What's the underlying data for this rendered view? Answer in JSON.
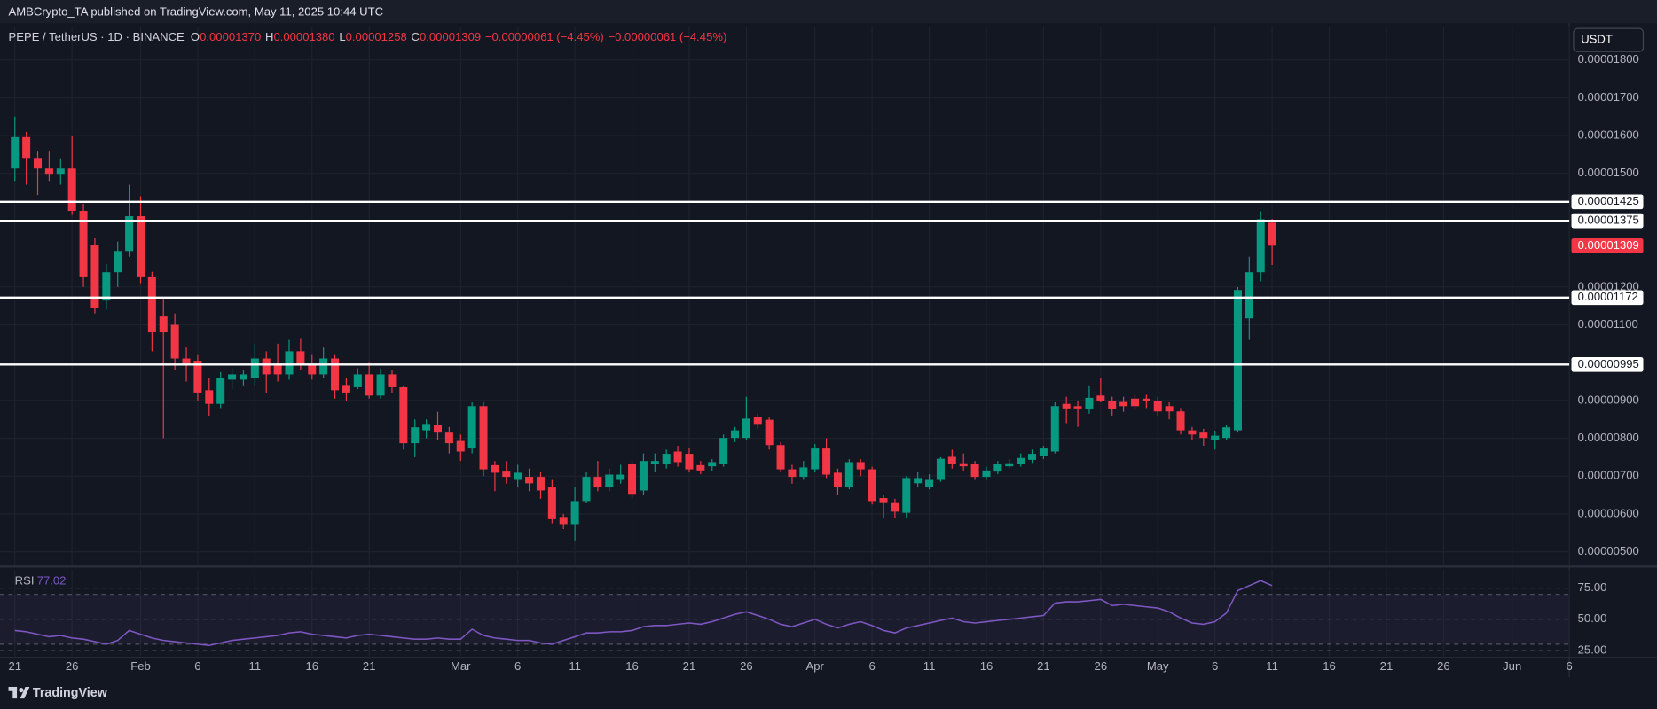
{
  "header": {
    "publisher": "AMBCrypto_TA published on TradingView.com, May 11, 2025 10:44 UTC"
  },
  "footer": {
    "brand": "TradingView"
  },
  "chart_data": {
    "type": "candlestick",
    "currency": "USDT",
    "legend": {
      "symbol": "PEPE / TetherUS · 1D · BINANCE",
      "items": [
        {
          "key": "O",
          "value": "0.00001370"
        },
        {
          "key": "H",
          "value": "0.00001380"
        },
        {
          "key": "L",
          "value": "0.00001258"
        },
        {
          "key": "C",
          "value": "0.00001309"
        }
      ],
      "changes": [
        "−0.00000061 (−4.45%)",
        "−0.00000061 (−4.45%)"
      ]
    },
    "up_color": "#089981",
    "down_color": "#f23645",
    "grid": true,
    "candles": {
      "open": [
        1.513e-05,
        1.596e-05,
        1.541e-05,
        1.513e-05,
        1.499e-05,
        1.513e-05,
        1.401e-05,
        1.312e-05,
        1.164e-05,
        1.239e-05,
        1.295e-05,
        1.387e-05,
        1.228e-05,
        1.122e-05,
        1.1e-05,
        1.011e-05,
        1.005e-05,
        9.27e-06,
        8.91e-06,
        9.55e-06,
        9.55e-06,
        9.6e-06,
        1.011e-05,
        9.97e-06,
        9.69e-06,
        1.03e-05,
        9.97e-06,
        9.69e-06,
        1.011e-05,
        9.41e-06,
        9.35e-06,
        9.69e-06,
        9.13e-06,
        9.69e-06,
        9.35e-06,
        7.87e-06,
        8.21e-06,
        8.35e-06,
        8.15e-06,
        7.93e-06,
        7.73e-06,
        8.85e-06,
        7.29e-06,
        7.12e-06,
        6.9e-06,
        6.98e-06,
        6.98e-06,
        6.7e-06,
        5.92e-06,
        5.73e-06,
        6.34e-06,
        6.98e-06,
        6.7e-06,
        6.9e-06,
        7.32e-06,
        6.62e-06,
        7.32e-06,
        7.32e-06,
        7.65e-06,
        7.59e-06,
        7.29e-06,
        7.26e-06,
        7.32e-06,
        8.01e-06,
        8.01e-06,
        8.57e-06,
        8.49e-06,
        7.82e-06,
        7.18e-06,
        6.98e-06,
        7.18e-06,
        7.73e-06,
        7.09e-06,
        6.7e-06,
        7.37e-06,
        7.18e-06,
        6.42e-06,
        6.31e-06,
        6.03e-06,
        6.81e-06,
        6.7e-06,
        6.9e-06,
        7.51e-06,
        7.34e-06,
        7.32e-06,
        6.98e-06,
        7.12e-06,
        7.26e-06,
        7.32e-06,
        7.43e-06,
        7.54e-06,
        7.65e-06,
        8.91e-06,
        8.85e-06,
        8.77e-06,
        9.13e-06,
        8.99e-06,
        8.96e-06,
        9.05e-06,
        9.05e-06,
        8.99e-06,
        8.85e-06,
        8.71e-06,
        8.21e-06,
        8.15e-06,
        7.96e-06,
        8.01e-06,
        8.21e-06,
        1.117e-05,
        1.239e-05,
        1.37e-05
      ],
      "high": [
        1.65e-05,
        1.61e-05,
        1.56e-05,
        1.56e-05,
        1.54e-05,
        1.6e-05,
        1.42e-05,
        1.33e-05,
        1.26e-05,
        1.32e-05,
        1.47e-05,
        1.44e-05,
        1.24e-05,
        1.17e-05,
        1.13e-05,
        1.04e-05,
        1.02e-05,
        9.6e-06,
        9.75e-06,
        9.85e-06,
        9.8e-06,
        1.05e-05,
        1.03e-05,
        1.05e-05,
        1.06e-05,
        1.065e-05,
        1.02e-05,
        1.04e-05,
        1.02e-05,
        9.6e-06,
        9.85e-06,
        1e-05,
        9.85e-06,
        9.8e-06,
        9.4e-06,
        8.5e-06,
        8.5e-06,
        8.7e-06,
        8.3e-06,
        8.1e-06,
        8.95e-06,
        8.95e-06,
        7.4e-06,
        7.4e-06,
        7.3e-06,
        7.2e-06,
        7.1e-06,
        6.9e-06,
        6e-06,
        6.7e-06,
        7.1e-06,
        7.4e-06,
        7.2e-06,
        7.3e-06,
        7.4e-06,
        7.6e-06,
        7.6e-06,
        7.7e-06,
        7.8e-06,
        7.75e-06,
        7.4e-06,
        7.45e-06,
        8.1e-06,
        8.3e-06,
        9.1e-06,
        8.65e-06,
        8.55e-06,
        7.9e-06,
        7.3e-06,
        7.4e-06,
        7.85e-06,
        8e-06,
        7.2e-06,
        7.45e-06,
        7.45e-06,
        7.25e-06,
        6.5e-06,
        6.4e-06,
        7e-06,
        7.1e-06,
        7.05e-06,
        7.5e-06,
        7.7e-06,
        7.6e-06,
        7.4e-06,
        7.25e-06,
        7.4e-06,
        7.45e-06,
        7.6e-06,
        7.7e-06,
        7.8e-06,
        8.95e-06,
        9.1e-06,
        9e-06,
        9.4e-06,
        9.6e-06,
        9.1e-06,
        9.1e-06,
        9.15e-06,
        9.15e-06,
        9.1e-06,
        8.95e-06,
        8.8e-06,
        8.3e-06,
        8.25e-06,
        8.2e-06,
        8.35e-06,
        1.2e-05,
        1.28e-05,
        1.4e-05,
        1.38e-05
      ],
      "low": [
        1.48e-05,
        1.47e-05,
        1.443e-05,
        1.48e-05,
        1.47e-05,
        1.39e-05,
        1.2e-05,
        1.13e-05,
        1.14e-05,
        1.2e-05,
        1.28e-05,
        1.21e-05,
        1.03e-05,
        8e-06,
        9.8e-06,
        9.5e-06,
        9e-06,
        8.6e-06,
        8.8e-06,
        9.3e-06,
        9.4e-06,
        9.4e-06,
        9.2e-06,
        9.5e-06,
        9.55e-06,
        9.8e-06,
        9.55e-06,
        9.6e-06,
        9.05e-06,
        9e-06,
        9.3e-06,
        9.05e-06,
        9.05e-06,
        9.2e-06,
        7.7e-06,
        7.5e-06,
        8e-06,
        7.95e-06,
        7.6e-06,
        7.4e-06,
        7.6e-06,
        7e-06,
        6.6e-06,
        6.8e-06,
        6.7e-06,
        6.6e-06,
        6.4e-06,
        5.75e-06,
        5.6e-06,
        5.3e-06,
        6.3e-06,
        6.6e-06,
        6.6e-06,
        6.8e-06,
        6.4e-06,
        6.5e-06,
        7.1e-06,
        7.2e-06,
        7.25e-06,
        7.1e-06,
        7.05e-06,
        7.15e-06,
        7.25e-06,
        7.9e-06,
        7.95e-06,
        8.25e-06,
        7.7e-06,
        7.1e-06,
        6.8e-06,
        6.9e-06,
        7.1e-06,
        6.95e-06,
        6.5e-06,
        6.65e-06,
        7e-06,
        6.25e-06,
        5.9e-06,
        5.9e-06,
        5.9e-06,
        6.7e-06,
        6.65e-06,
        6.85e-06,
        7.2e-06,
        7.15e-06,
        6.9e-06,
        6.9e-06,
        7.05e-06,
        7.2e-06,
        7.25e-06,
        7.35e-06,
        7.45e-06,
        7.6e-06,
        8.4e-06,
        8.3e-06,
        8.65e-06,
        8.95e-06,
        8.6e-06,
        8.7e-06,
        8.75e-06,
        8.8e-06,
        8.6e-06,
        8.5e-06,
        8.1e-06,
        7.95e-06,
        7.8e-06,
        7.7e-06,
        7.95e-06,
        8.15e-06,
        1.06e-05,
        1.215e-05,
        1.258e-05
      ],
      "close": [
        1.596e-05,
        1.541e-05,
        1.513e-05,
        1.499e-05,
        1.513e-05,
        1.401e-05,
        1.228e-05,
        1.145e-05,
        1.239e-05,
        1.295e-05,
        1.387e-05,
        1.228e-05,
        1.08e-05,
        1.08e-05,
        1.011e-05,
        9.97e-06,
        9.21e-06,
        8.91e-06,
        9.6e-06,
        9.69e-06,
        9.69e-06,
        1.011e-05,
        9.69e-06,
        9.69e-06,
        1.03e-05,
        9.97e-06,
        9.69e-06,
        1.011e-05,
        9.27e-06,
        9.21e-06,
        9.69e-06,
        9.13e-06,
        9.69e-06,
        9.35e-06,
        7.87e-06,
        8.29e-06,
        8.38e-06,
        8.15e-06,
        7.87e-06,
        7.65e-06,
        8.85e-06,
        7.18e-06,
        7.09e-06,
        6.98e-06,
        7.09e-06,
        6.81e-06,
        6.62e-06,
        5.86e-06,
        5.73e-06,
        6.34e-06,
        6.98e-06,
        6.7e-06,
        7.04e-06,
        7.04e-06,
        6.53e-06,
        7.4e-06,
        7.4e-06,
        7.59e-06,
        7.37e-06,
        7.18e-06,
        7.15e-06,
        7.37e-06,
        8.01e-06,
        8.21e-06,
        8.52e-06,
        8.38e-06,
        7.82e-06,
        7.18e-06,
        6.98e-06,
        7.23e-06,
        7.73e-06,
        7.04e-06,
        6.7e-06,
        7.37e-06,
        7.18e-06,
        6.34e-06,
        6.31e-06,
        6.06e-06,
        6.95e-06,
        6.95e-06,
        6.9e-06,
        7.46e-06,
        7.32e-06,
        7.26e-06,
        6.98e-06,
        7.15e-06,
        7.32e-06,
        7.34e-06,
        7.48e-06,
        7.59e-06,
        7.73e-06,
        8.85e-06,
        8.79e-06,
        8.79e-06,
        9.07e-06,
        8.99e-06,
        8.77e-06,
        8.85e-06,
        8.85e-06,
        8.99e-06,
        8.71e-06,
        8.71e-06,
        8.21e-06,
        8.1e-06,
        8.01e-06,
        8.07e-06,
        8.29e-06,
        1.192e-05,
        1.239e-05,
        1.379e-05,
        1.309e-05
      ]
    },
    "xlim": [
      -1.3,
      136
    ],
    "xticks": [
      {
        "value": 0,
        "label": "21"
      },
      {
        "value": 5,
        "label": "26"
      },
      {
        "value": 11,
        "label": "Feb"
      },
      {
        "value": 16,
        "label": "6"
      },
      {
        "value": 21,
        "label": "11"
      },
      {
        "value": 26,
        "label": "16"
      },
      {
        "value": 31,
        "label": "21"
      },
      {
        "value": 39,
        "label": "Mar"
      },
      {
        "value": 44,
        "label": "6"
      },
      {
        "value": 49,
        "label": "11"
      },
      {
        "value": 54,
        "label": "16"
      },
      {
        "value": 59,
        "label": "21"
      },
      {
        "value": 64,
        "label": "26"
      },
      {
        "value": 70,
        "label": "Apr"
      },
      {
        "value": 75,
        "label": "6"
      },
      {
        "value": 80,
        "label": "11"
      },
      {
        "value": 85,
        "label": "16"
      },
      {
        "value": 90,
        "label": "21"
      },
      {
        "value": 95,
        "label": "26"
      },
      {
        "value": 100,
        "label": "May"
      },
      {
        "value": 105,
        "label": "6"
      },
      {
        "value": 110,
        "label": "11"
      },
      {
        "value": 115,
        "label": "16"
      },
      {
        "value": 120,
        "label": "21"
      },
      {
        "value": 125,
        "label": "26"
      },
      {
        "value": 131,
        "label": "Jun"
      },
      {
        "value": 136,
        "label": "6"
      }
    ],
    "ylim": [
      4.665e-06,
      1.889e-05
    ],
    "yticks": [
      {
        "value": 1.8e-05,
        "label": "0.00001800"
      },
      {
        "value": 1.7e-05,
        "label": "0.00001700"
      },
      {
        "value": 1.6e-05,
        "label": "0.00001600"
      },
      {
        "value": 1.5e-05,
        "label": "0.00001500"
      },
      {
        "value": 1.2e-05,
        "label": "0.00001200"
      },
      {
        "value": 1.1e-05,
        "label": "0.00001100"
      },
      {
        "value": 9e-06,
        "label": "0.00000900"
      },
      {
        "value": 8e-06,
        "label": "0.00000800"
      },
      {
        "value": 7e-06,
        "label": "0.00000700"
      },
      {
        "value": 6e-06,
        "label": "0.00000600"
      },
      {
        "value": 5e-06,
        "label": "0.00000500"
      }
    ],
    "levels": [
      {
        "value": 1.425e-05,
        "label": "0.00001425"
      },
      {
        "value": 1.375e-05,
        "label": "0.00001375"
      },
      {
        "value": 1.172e-05,
        "label": "0.00001172"
      },
      {
        "value": 9.95e-06,
        "label": "0.00000995"
      }
    ],
    "level_color": "#ffffff",
    "last_price": {
      "value": 1.309e-05,
      "label": "0.00001309"
    },
    "rsi": {
      "name": "RSI",
      "value_label": "77.02",
      "color": "#7e57c2",
      "values": [
        41,
        40,
        38,
        36,
        37,
        35,
        34,
        32,
        30,
        33,
        41,
        38,
        35,
        33,
        32,
        31,
        30,
        29,
        31,
        33,
        34,
        35,
        36,
        37,
        39,
        40,
        38,
        37,
        36,
        35,
        37,
        38,
        37,
        36,
        35,
        34,
        34,
        35,
        34,
        34,
        42,
        37,
        35,
        34,
        33,
        33,
        31,
        30,
        33,
        36,
        39,
        39,
        40,
        40,
        41,
        44,
        45,
        45,
        46,
        47,
        46,
        48,
        51,
        54,
        56,
        53,
        50,
        46,
        44,
        47,
        50,
        46,
        43,
        46,
        48,
        45,
        41,
        39,
        43,
        45,
        47,
        49,
        51,
        48,
        47,
        48,
        49,
        50,
        51,
        52,
        53,
        63,
        64,
        64,
        65,
        66,
        61,
        62,
        61,
        60,
        59,
        56,
        51,
        47,
        46,
        48,
        55,
        73,
        77,
        81,
        77.02
      ],
      "ylim": [
        20.3,
        89.8
      ],
      "yticks": [
        {
          "value": 75,
          "label": "75.00"
        },
        {
          "value": 50,
          "label": "50.00"
        },
        {
          "value": 25,
          "label": "25.00"
        }
      ],
      "band": [
        70,
        30
      ]
    }
  }
}
